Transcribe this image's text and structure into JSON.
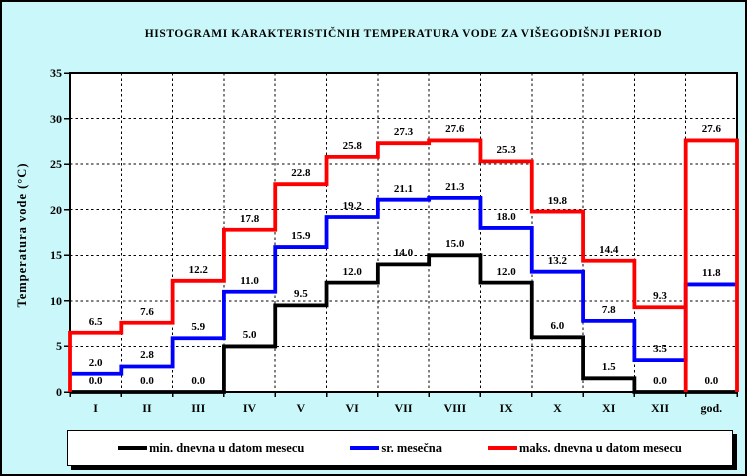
{
  "title": "HISTOGRAMI KARAKTERISTIČNIH TEMPERATURA VODE ZA VIŠEGODIŠNJI PERIOD",
  "y_axis": {
    "label": "Temperatura vode (°C)",
    "ticks": [
      0,
      5,
      10,
      15,
      20,
      25,
      30,
      35
    ]
  },
  "chart_data": {
    "type": "line",
    "subtype": "step-histogram",
    "title": "HISTOGRAMI KARAKTERISTIČNIH TEMPERATURA VODE ZA VIŠEGODIŠNJI PERIOD",
    "xlabel": "",
    "ylabel": "Temperatura vode (°C)",
    "ylim": [
      0,
      35
    ],
    "ytick_step": 5,
    "grid": true,
    "legend_position": "bottom",
    "categories": [
      "I",
      "II",
      "III",
      "IV",
      "V",
      "VI",
      "VII",
      "VIII",
      "IX",
      "X",
      "XI",
      "XII",
      "god."
    ],
    "series": [
      {
        "name": "min. dnevna u datom mesecu",
        "color": "#000000",
        "values": [
          0.0,
          0.0,
          0.0,
          5.0,
          9.5,
          12.0,
          14.0,
          15.0,
          12.0,
          6.0,
          1.5,
          0.0,
          0.0
        ]
      },
      {
        "name": "sr. mesečna",
        "color": "#0000FF",
        "values": [
          2.0,
          2.8,
          5.9,
          11.0,
          15.9,
          19.2,
          21.1,
          21.3,
          18.0,
          13.2,
          7.8,
          3.5,
          11.8
        ]
      },
      {
        "name": "maks. dnevna u datom mesecu",
        "color": "#FF0000",
        "values": [
          6.5,
          7.6,
          12.2,
          17.8,
          22.8,
          25.8,
          27.3,
          27.6,
          25.3,
          19.8,
          14.4,
          9.3,
          27.6
        ]
      }
    ]
  },
  "colors": {
    "background": "#CAF8FA",
    "plot_background": "#FFFFFF",
    "frame_border": "#000000",
    "min_series": "#000000",
    "mean_series": "#0000FF",
    "max_series": "#FF0000"
  }
}
